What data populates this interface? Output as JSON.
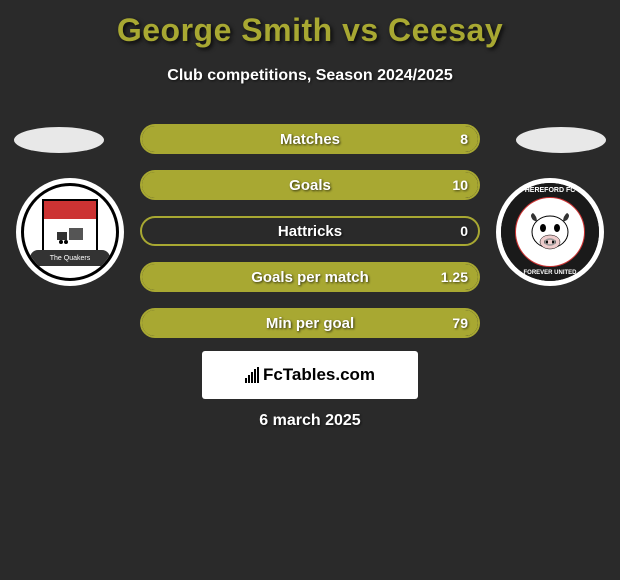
{
  "title": "George Smith vs Ceesay",
  "subtitle": "Club competitions, Season 2024/2025",
  "date": "6 march 2025",
  "branding": "FcTables.com",
  "colors": {
    "accent": "#a8a832",
    "background": "#2a2a2a",
    "text": "#ffffff"
  },
  "player_left": {
    "name": "George Smith",
    "badge_text": "The Quakers"
  },
  "player_right": {
    "name": "Ceesay",
    "badge_top": "HEREFORD FC",
    "badge_bottom": "FOREVER UNITED"
  },
  "stats": [
    {
      "label": "Matches",
      "left_value": "",
      "right_value": "8",
      "left_pct": 0,
      "right_pct": 100
    },
    {
      "label": "Goals",
      "left_value": "",
      "right_value": "10",
      "left_pct": 0,
      "right_pct": 100
    },
    {
      "label": "Hattricks",
      "left_value": "",
      "right_value": "0",
      "left_pct": 0,
      "right_pct": 0
    },
    {
      "label": "Goals per match",
      "left_value": "",
      "right_value": "1.25",
      "left_pct": 0,
      "right_pct": 100
    },
    {
      "label": "Min per goal",
      "left_value": "",
      "right_value": "79",
      "left_pct": 0,
      "right_pct": 100
    }
  ]
}
